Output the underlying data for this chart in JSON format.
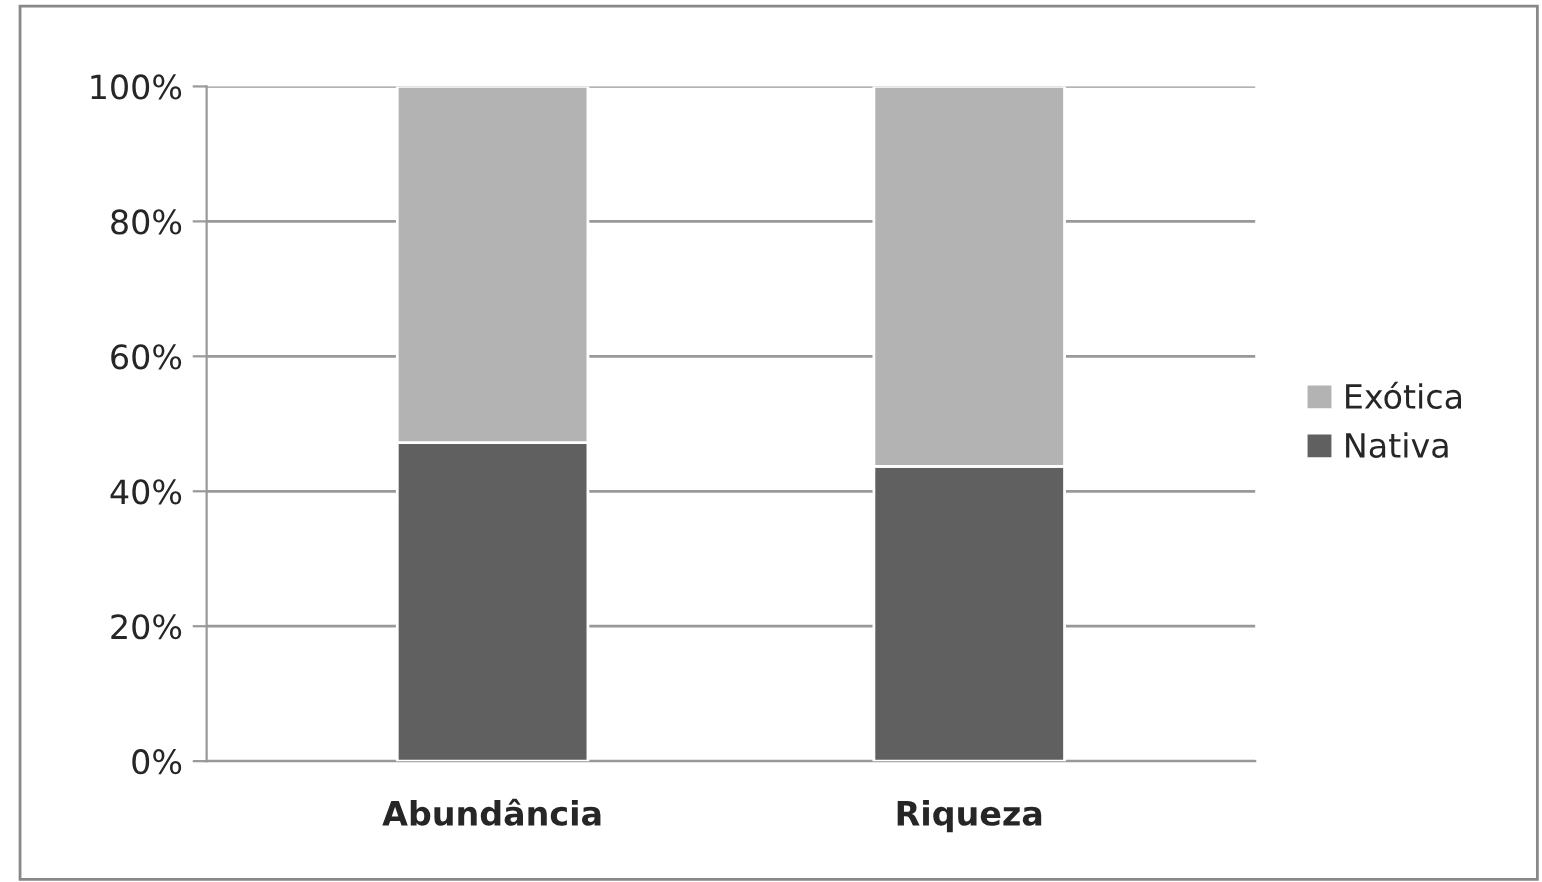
{
  "chart_data": {
    "type": "bar",
    "stacked": true,
    "categories": [
      "Abundância",
      "Riqueza"
    ],
    "series": [
      {
        "name": "Nativa",
        "color": "#606060",
        "values": [
          47.2,
          43.7
        ]
      },
      {
        "name": "Exótica",
        "color": "#b3b3b3",
        "values": [
          52.8,
          56.3
        ]
      }
    ],
    "ylim": [
      0,
      100
    ],
    "yticks": [
      {
        "value": 0,
        "label": "0%"
      },
      {
        "value": 20,
        "label": "20%"
      },
      {
        "value": 40,
        "label": "40%"
      },
      {
        "value": 60,
        "label": "60%"
      },
      {
        "value": 80,
        "label": "80%"
      },
      {
        "value": 100,
        "label": "100%"
      }
    ],
    "grid": "y",
    "legend": "right"
  }
}
